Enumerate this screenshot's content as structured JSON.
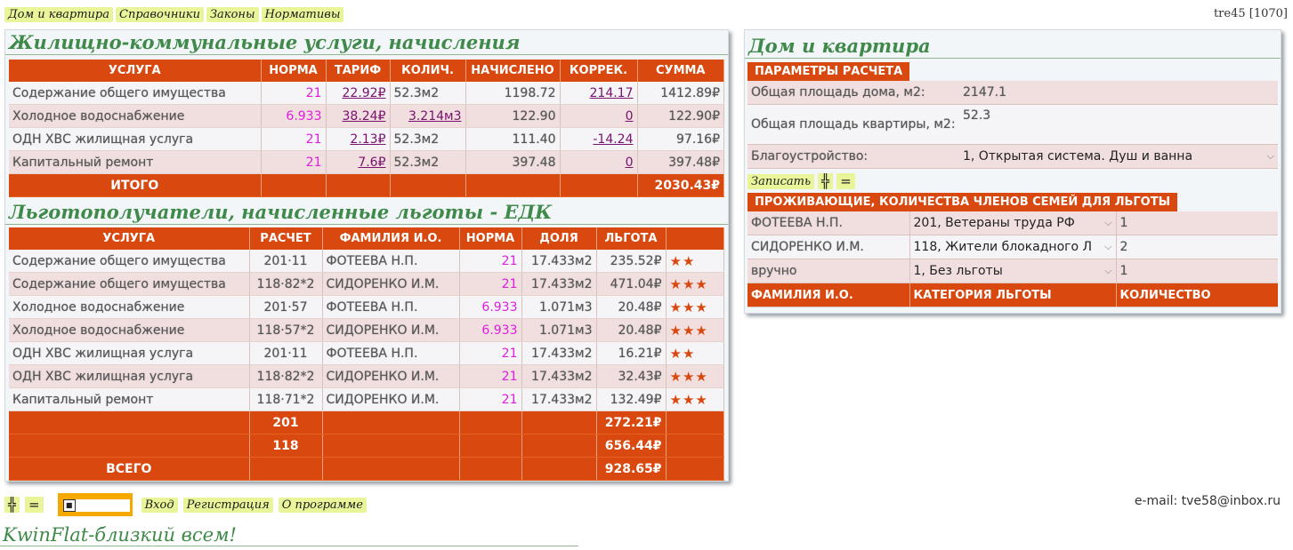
{
  "topnav": [
    "Дом и квартира",
    "Справочники",
    "Законы",
    "Нормативы"
  ],
  "top_right": "tre45 [1070]",
  "charges": {
    "title": "Жилищно-коммунальные услуги, начисления",
    "headers": [
      "УСЛУГА",
      "НОРМА",
      "ТАРИФ",
      "КОЛИЧ.",
      "НАЧИСЛЕНО",
      "КОРРЕК.",
      "СУММА"
    ],
    "rows": [
      {
        "service": "Содержание общего имущества",
        "norm": "21",
        "tariff": "22.92₽",
        "qty": "52.3м2",
        "accrued": "1198.72",
        "corr": "214.17",
        "sum": "1412.89₽"
      },
      {
        "service": "Холодное водоснабжение",
        "norm": "6.933",
        "tariff": "38.24₽",
        "qty": "3.214м3",
        "accrued": "122.90",
        "corr": "0",
        "sum": "122.90₽"
      },
      {
        "service": "ОДН ХВС жилищная услуга",
        "norm": "21",
        "tariff": "2.13₽",
        "qty": "52.3м2",
        "accrued": "111.40",
        "corr": "-14.24",
        "sum": "97.16₽"
      },
      {
        "service": "Капитальный ремонт",
        "norm": "21",
        "tariff": "7.6₽",
        "qty": "52.3м2",
        "accrued": "397.48",
        "corr": "0",
        "sum": "397.48₽"
      }
    ],
    "total_label": "ИТОГО",
    "total_sum": "2030.43₽"
  },
  "benefits": {
    "title": "Льготополучатели, начисленные льготы - ЕДК",
    "headers": [
      "УСЛУГА",
      "РАСЧЕТ",
      "ФАМИЛИЯ И.О.",
      "НОРМА",
      "ДОЛЯ",
      "ЛЬГОТА",
      ""
    ],
    "rows": [
      {
        "service": "Содержание общего имущества",
        "calc": "201·11",
        "name": "ФОТЕЕВА Н.П.",
        "norm": "21",
        "share": "17.433м2",
        "benefit": "235.52₽",
        "stars": "★★"
      },
      {
        "service": "Содержание общего имущества",
        "calc": "118·82*2",
        "name": "СИДОРЕНКО И.М.",
        "norm": "21",
        "share": "17.433м2",
        "benefit": "471.04₽",
        "stars": "★★★"
      },
      {
        "service": "Холодное водоснабжение",
        "calc": "201·57",
        "name": "ФОТЕЕВА Н.П.",
        "norm": "6.933",
        "share": "1.071м3",
        "benefit": "20.48₽",
        "stars": "★★★"
      },
      {
        "service": "Холодное водоснабжение",
        "calc": "118·57*2",
        "name": "СИДОРЕНКО И.М.",
        "norm": "6.933",
        "share": "1.071м3",
        "benefit": "20.48₽",
        "stars": "★★★"
      },
      {
        "service": "ОДН ХВС жилищная услуга",
        "calc": "201·11",
        "name": "ФОТЕЕВА Н.П.",
        "norm": "21",
        "share": "17.433м2",
        "benefit": "16.21₽",
        "stars": "★★"
      },
      {
        "service": "ОДН ХВС жилищная услуга",
        "calc": "118·82*2",
        "name": "СИДОРЕНКО И.М.",
        "norm": "21",
        "share": "17.433м2",
        "benefit": "32.43₽",
        "stars": "★★★"
      },
      {
        "service": "Капитальный ремонт",
        "calc": "118·71*2",
        "name": "СИДОРЕНКО И.М.",
        "norm": "21",
        "share": "17.433м2",
        "benefit": "132.49₽",
        "stars": "★★★"
      }
    ],
    "subtotals": [
      {
        "label": "201",
        "value": "272.21₽"
      },
      {
        "label": "118",
        "value": "656.44₽"
      }
    ],
    "total_label": "ВСЕГО",
    "total_value": "928.65₽"
  },
  "house": {
    "title": "Дом и квартира",
    "params_label": "ПАРАМЕТРЫ РАСЧЕТА",
    "params": [
      {
        "label": "Общая площадь дома, м2:",
        "value": "2147.1"
      },
      {
        "label": "Общая площадь квартиры, м2:",
        "value": "52.3"
      },
      {
        "label": "Благоустройство:",
        "value": "1, Открытая система. Душ и ванна"
      }
    ],
    "save_label": "Записать",
    "residents_label": "ПРОЖИВАЮЩИЕ, КОЛИЧЕСТВА ЧЛЕНОВ СЕМЕЙ ДЛЯ ЛЬГОТЫ",
    "residents": [
      {
        "name": "ФОТЕЕВА Н.П.",
        "category": "201, Ветераны труда РФ",
        "count": "1"
      },
      {
        "name": "СИДОРЕНКО И.М.",
        "category": "118, Жители блокадного Л",
        "count": "2"
      },
      {
        "name": "вручно",
        "category": "1, Без льготы",
        "count": "1"
      }
    ],
    "residents_headers": [
      "ФАМИЛИЯ И.О.",
      "КАТЕГОРИЯ ЛЬГОТЫ",
      "КОЛИЧЕСТВО"
    ]
  },
  "bottom_links": [
    "Вход",
    "Регистрация",
    "О программе"
  ],
  "email": "e-mail: tve58@inbox.ru",
  "footer": "KwinFlat-близкий всем!"
}
